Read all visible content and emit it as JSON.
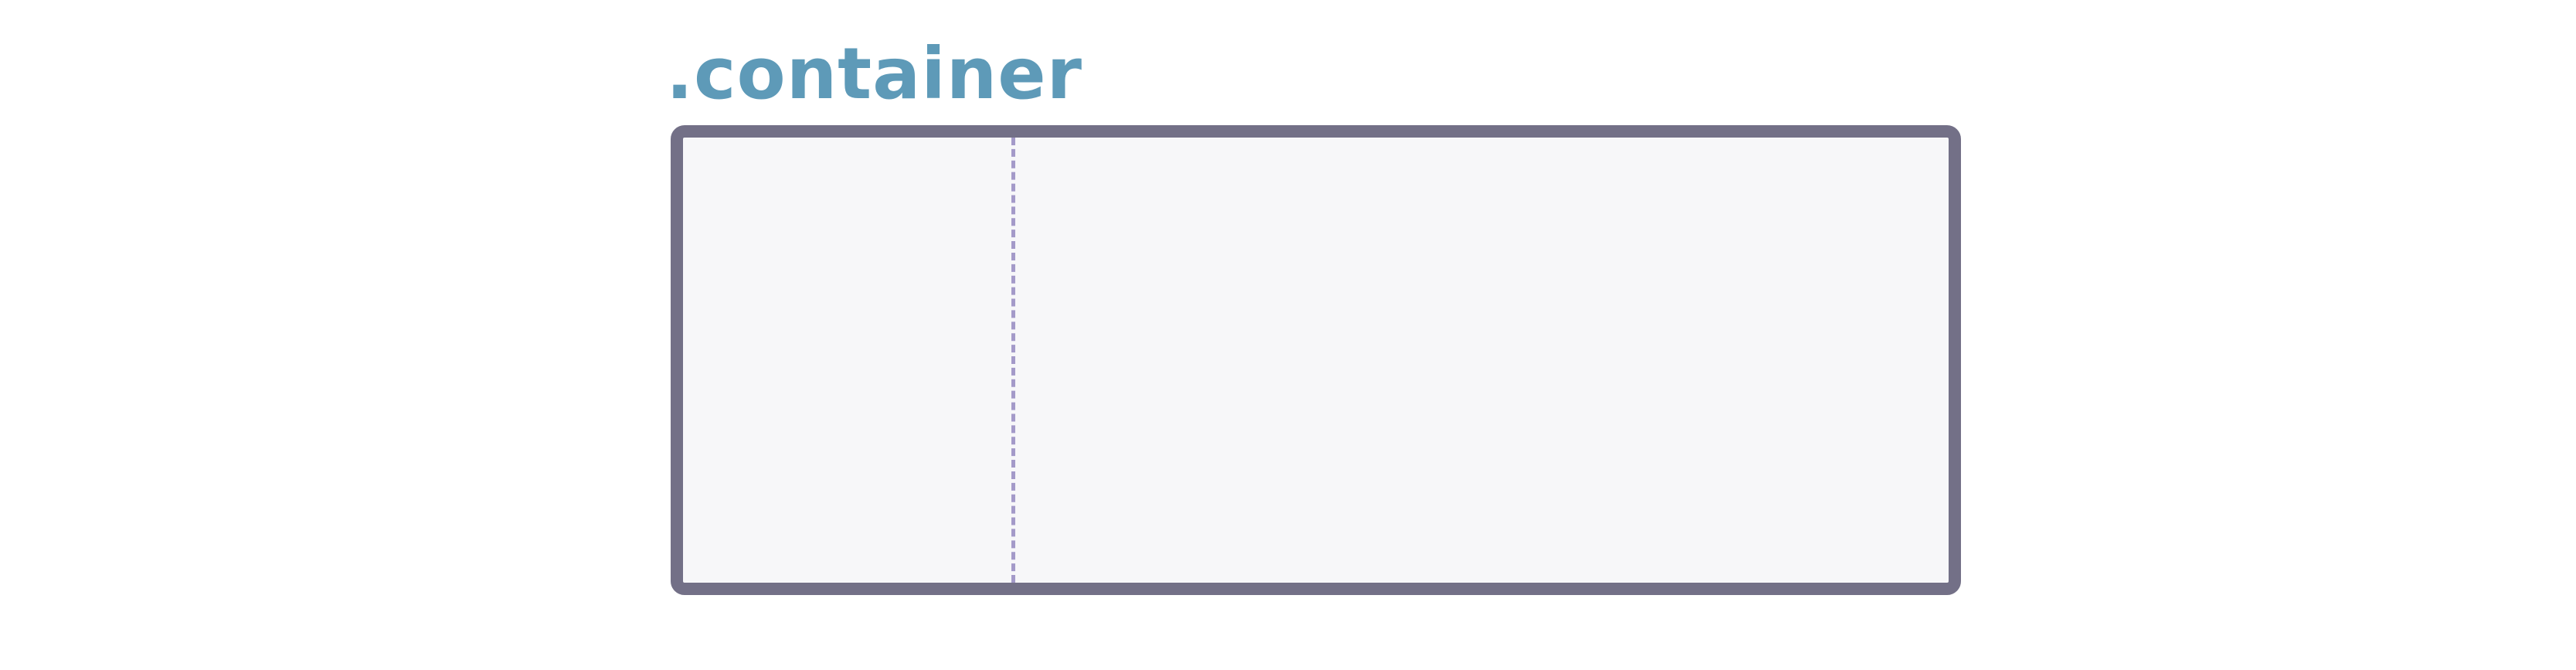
{
  "diagram": {
    "label": ".container",
    "colors": {
      "label_text": "#5e9ab8",
      "box_border": "#737087",
      "box_fill": "#f7f7f9",
      "guide_line": "#a49ac9"
    }
  }
}
